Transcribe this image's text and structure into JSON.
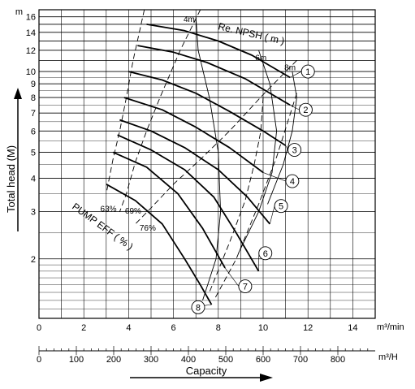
{
  "chart_data": {
    "type": "line",
    "title": "",
    "y_axis": {
      "label": "Total head (M)",
      "unit": "m",
      "scale": "log",
      "range": [
        1.2,
        17
      ],
      "ticks": [
        "2",
        "3",
        "4",
        "5",
        "6",
        "7",
        "8",
        "9",
        "10",
        "12",
        "14",
        "16"
      ]
    },
    "x_axis_primary": {
      "unit": "m³/min",
      "range": [
        0,
        15
      ],
      "ticks": [
        "0",
        "2",
        "4",
        "6",
        "8",
        "10",
        "12",
        "14"
      ]
    },
    "x_axis_secondary": {
      "unit": "m³/H",
      "range": [
        0,
        900
      ],
      "ticks": [
        "0",
        "100",
        "200",
        "300",
        "400",
        "500",
        "600",
        "700",
        "800"
      ]
    },
    "x_label": "Capacity",
    "grid": true,
    "series": [
      {
        "name": "1",
        "points": [
          [
            4.8,
            15
          ],
          [
            6.5,
            14.2
          ],
          [
            8.0,
            13.0
          ],
          [
            9.5,
            11.5
          ],
          [
            11.2,
            9.5
          ]
        ]
      },
      {
        "name": "2",
        "points": [
          [
            4.4,
            12.5
          ],
          [
            6.0,
            11.8
          ],
          [
            7.5,
            10.8
          ],
          [
            9.2,
            9.4
          ],
          [
            11.2,
            7.5
          ]
        ]
      },
      {
        "name": "3",
        "points": [
          [
            4.0,
            10.0
          ],
          [
            5.5,
            9.3
          ],
          [
            7.0,
            8.3
          ],
          [
            8.5,
            7.1
          ],
          [
            10.0,
            6.0
          ],
          [
            11.0,
            5.3
          ]
        ]
      },
      {
        "name": "4",
        "points": [
          [
            3.8,
            8.0
          ],
          [
            5.5,
            7.2
          ],
          [
            7.0,
            6.2
          ],
          [
            8.5,
            5.2
          ],
          [
            10.0,
            4.2
          ]
        ]
      },
      {
        "name": "5",
        "points": [
          [
            3.6,
            6.6
          ],
          [
            5.0,
            6.0
          ],
          [
            6.5,
            5.2
          ],
          [
            8.0,
            4.3
          ],
          [
            9.3,
            3.4
          ],
          [
            10.3,
            2.7
          ]
        ]
      },
      {
        "name": "6",
        "points": [
          [
            3.5,
            5.8
          ],
          [
            5.0,
            5.1
          ],
          [
            6.5,
            4.3
          ],
          [
            7.8,
            3.4
          ],
          [
            8.8,
            2.5
          ],
          [
            9.8,
            1.8
          ]
        ]
      },
      {
        "name": "7",
        "points": [
          [
            3.3,
            5.0
          ],
          [
            4.8,
            4.4
          ],
          [
            6.2,
            3.5
          ],
          [
            7.3,
            2.6
          ],
          [
            8.3,
            1.85
          ]
        ]
      },
      {
        "name": "8",
        "points": [
          [
            3.0,
            3.8
          ],
          [
            4.3,
            3.3
          ],
          [
            5.5,
            2.7
          ],
          [
            6.5,
            2.0
          ],
          [
            7.2,
            1.6
          ],
          [
            7.7,
            1.35
          ]
        ]
      }
    ],
    "efficiency_curves": [
      {
        "label": "63%",
        "points": [
          [
            4.7,
            17
          ],
          [
            4.2,
            11
          ],
          [
            3.9,
            8
          ],
          [
            3.6,
            6
          ],
          [
            3.3,
            4.7
          ],
          [
            3.0,
            3.5
          ]
        ]
      },
      {
        "label": "69%",
        "points": [
          [
            7.2,
            17
          ],
          [
            6.3,
            12
          ],
          [
            5.4,
            8
          ],
          [
            4.8,
            6
          ],
          [
            4.3,
            4.6
          ],
          [
            3.9,
            3.5
          ],
          [
            3.6,
            3.0
          ]
        ]
      },
      {
        "label": "76%",
        "points": [
          [
            11.5,
            11
          ],
          [
            10.0,
            8.2
          ],
          [
            8.5,
            6
          ],
          [
            7.2,
            4.7
          ],
          [
            6.0,
            3.8
          ],
          [
            5.0,
            3.1
          ],
          [
            4.3,
            2.7
          ]
        ]
      },
      {
        "label": "",
        "points": [
          [
            10.0,
            8
          ],
          [
            9.9,
            6
          ],
          [
            9.6,
            4.5
          ],
          [
            9.2,
            3.3
          ],
          [
            8.5,
            2.3
          ],
          [
            7.6,
            1.5
          ]
        ]
      },
      {
        "label": "",
        "points": [
          [
            11.5,
            8.3
          ],
          [
            11.1,
            6.5
          ],
          [
            10.6,
            4.8
          ],
          [
            9.8,
            3.2
          ],
          [
            8.8,
            2.0
          ],
          [
            7.8,
            1.4
          ]
        ]
      }
    ],
    "npsh_curves": [
      {
        "label": "4m",
        "points": [
          [
            7.0,
            16
          ],
          [
            7.1,
            12
          ],
          [
            7.6,
            8
          ],
          [
            8.0,
            5
          ],
          [
            8.1,
            3
          ],
          [
            7.9,
            2
          ],
          [
            7.3,
            1.4
          ]
        ]
      },
      {
        "label": "6m",
        "points": [
          [
            9.8,
            12
          ],
          [
            10.3,
            9
          ],
          [
            10.6,
            6
          ],
          [
            10.4,
            4.2
          ],
          [
            9.8,
            3
          ],
          [
            8.9,
            2.1
          ]
        ]
      },
      {
        "label": "8m",
        "points": [
          [
            11.3,
            10
          ],
          [
            11.5,
            8
          ],
          [
            11.3,
            6
          ],
          [
            10.9,
            4.5
          ],
          [
            10.2,
            3.2
          ]
        ]
      }
    ],
    "annotations": {
      "npsh_title": "Re. NPSH ( m )",
      "eff_title": "PUMP EFF ( % )"
    },
    "pointers": [
      "1",
      "2",
      "3",
      "4",
      "5",
      "6",
      "7",
      "8"
    ]
  }
}
